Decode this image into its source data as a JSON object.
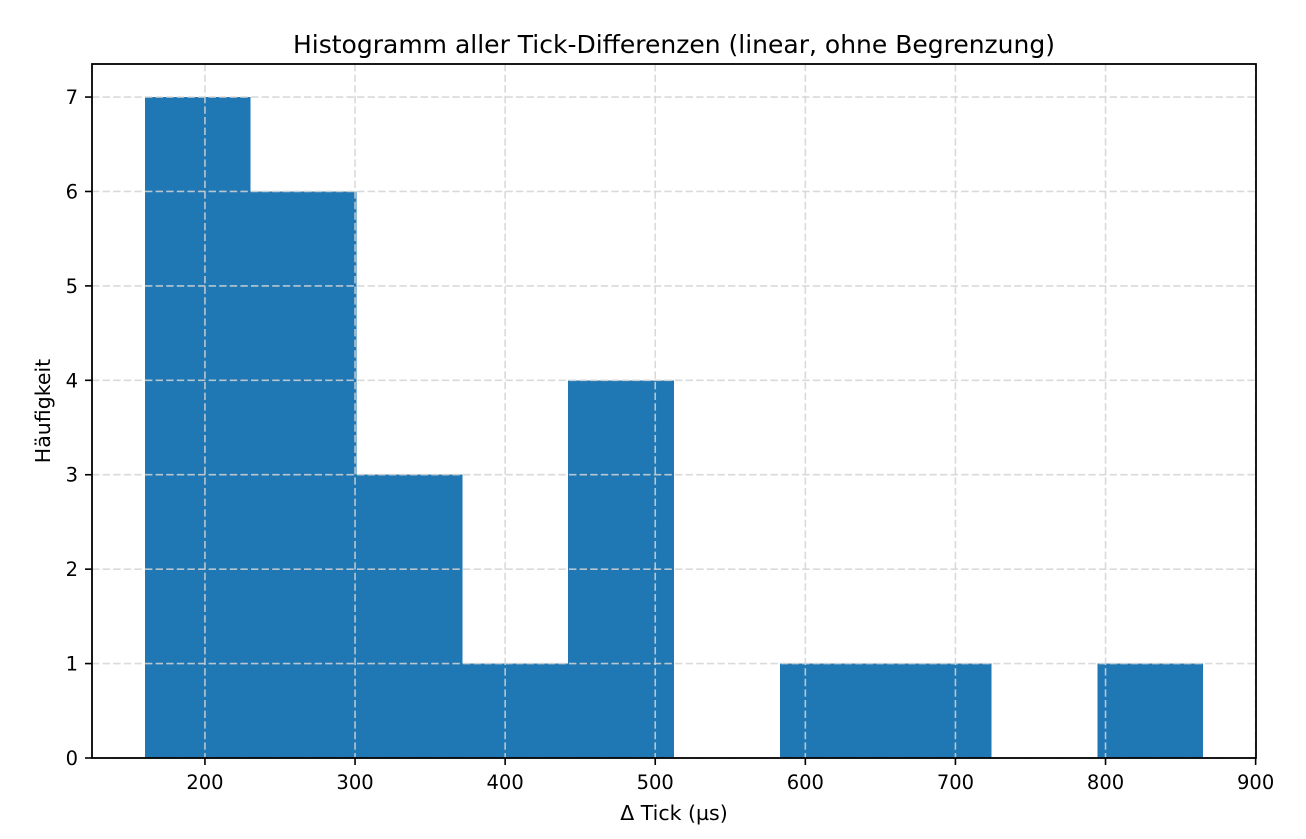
{
  "chart_data": {
    "type": "bar",
    "subtype": "histogram",
    "title": "Histogramm aller Tick-Differenzen (linear, ohne Begrenzung)",
    "xlabel": "Δ Tick (µs)",
    "ylabel": "Häufigkeit",
    "bin_edges": [
      160,
      230.5,
      301,
      371.5,
      442,
      512.5,
      583,
      653.5,
      724,
      794.5,
      865
    ],
    "counts": [
      7,
      6,
      3,
      1,
      4,
      0,
      1,
      1,
      0,
      1
    ],
    "xticks": [
      200,
      300,
      400,
      500,
      600,
      700,
      800,
      900
    ],
    "yticks": [
      0,
      1,
      2,
      3,
      4,
      5,
      6,
      7
    ],
    "xlim": [
      124.75,
      900.25
    ],
    "ylim": [
      0,
      7.35
    ],
    "bar_color": "#1f77b4",
    "axis_color": "#000000",
    "grid": {
      "visible": true,
      "linestyle": "dashed",
      "color": "#d3d3d3",
      "drawn_above_bars": true
    }
  }
}
